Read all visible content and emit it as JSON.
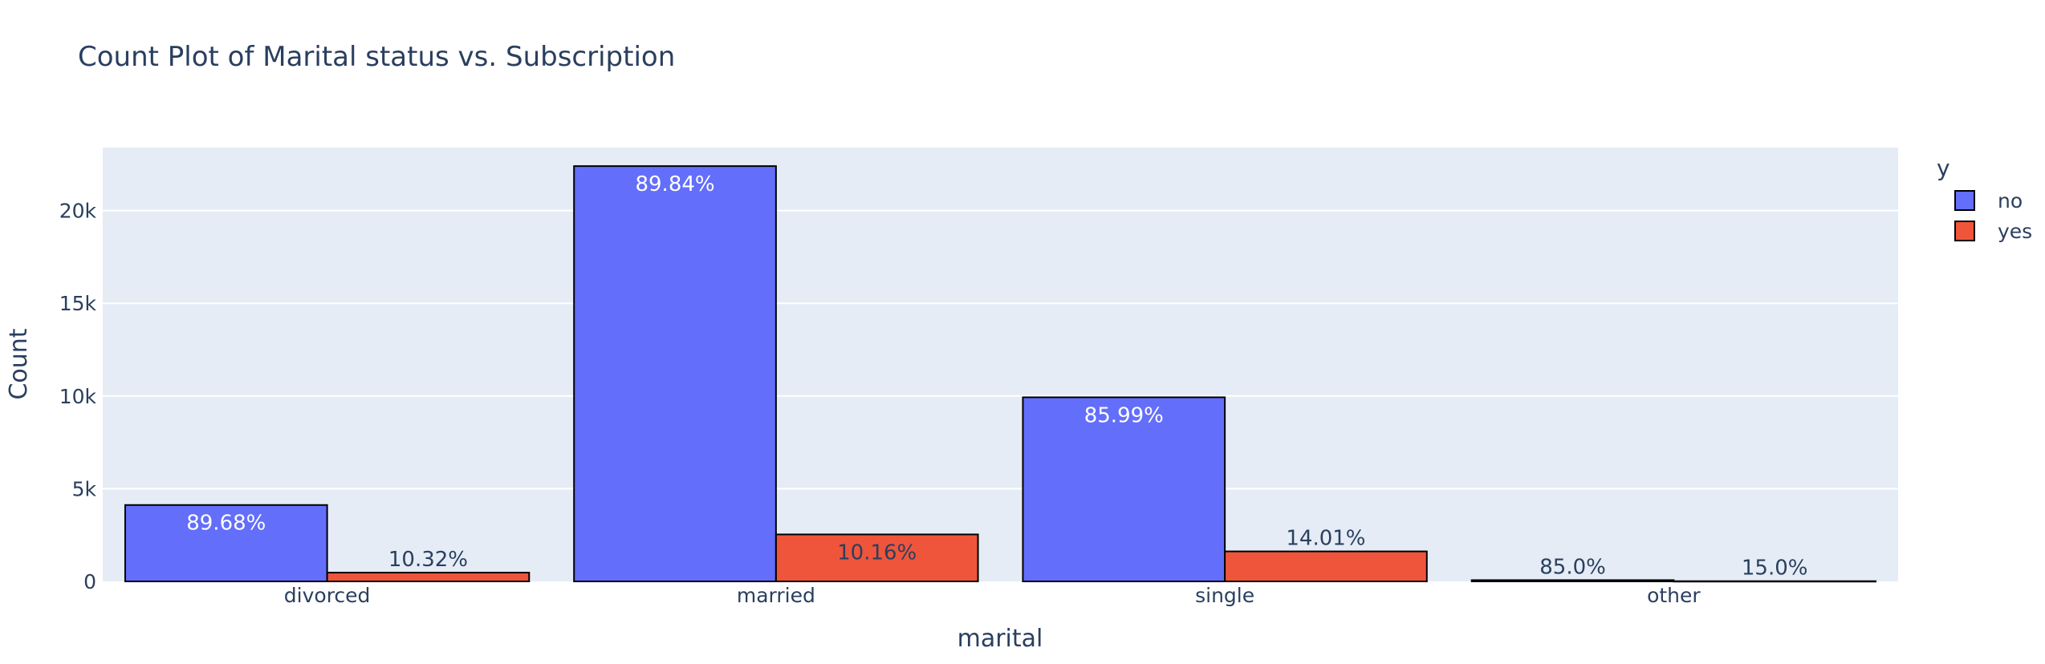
{
  "chart_data": {
    "type": "bar",
    "title": "Count Plot of Marital status vs. Subscription",
    "xlabel": "marital",
    "ylabel": "Count",
    "categories": [
      "divorced",
      "married",
      "single",
      "other"
    ],
    "series": [
      {
        "name": "no",
        "color": "#636efa",
        "values": [
          4120,
          22400,
          9930,
          68
        ],
        "labels": [
          "89.68%",
          "89.84%",
          "85.99%",
          "85.0%"
        ]
      },
      {
        "name": "yes",
        "color": "#ef553b",
        "values": [
          474,
          2533,
          1618,
          12
        ],
        "labels": [
          "10.32%",
          "10.16%",
          "14.01%",
          "15.0%"
        ]
      }
    ],
    "ylim": [
      0,
      23400
    ],
    "yticks": [
      0,
      5000,
      10000,
      15000,
      20000
    ],
    "ytick_labels": [
      "0",
      "5k",
      "10k",
      "15k",
      "20k"
    ],
    "legend_title": "y",
    "legend_position": "top-right",
    "grid": true,
    "background": "#e5ecf6",
    "gridcolor": "#ffffff",
    "barmode": "group"
  }
}
